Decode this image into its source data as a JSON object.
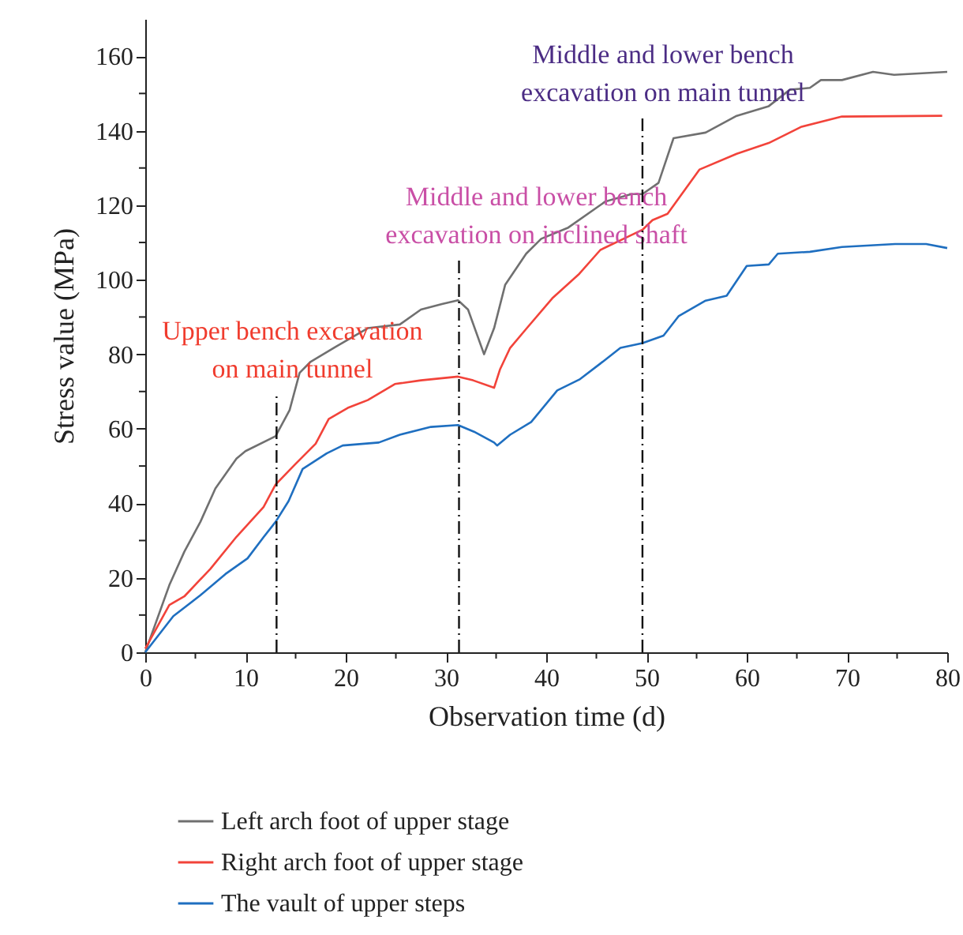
{
  "chart_data": {
    "type": "line",
    "xlabel": "Observation time (d)",
    "ylabel": "Stress value (MPa)",
    "xlim": [
      0,
      80
    ],
    "ylim": [
      0,
      170
    ],
    "xticks": [
      0,
      {
        "value": 5,
        "label": null
      },
      10,
      {
        "value": 15,
        "label": null
      },
      20,
      {
        "value": 25,
        "label": null
      },
      30,
      {
        "value": 35,
        "label": null
      },
      40,
      {
        "value": 45,
        "label": null
      },
      50,
      {
        "value": 55,
        "label": null
      },
      60,
      {
        "value": 65,
        "label": null
      },
      70,
      {
        "value": 75,
        "label": null
      },
      80
    ],
    "yticks": [
      0,
      {
        "value": 10,
        "label": null
      },
      20,
      {
        "value": 30,
        "label": null
      },
      40,
      {
        "value": 50,
        "label": null
      },
      60,
      {
        "value": 70,
        "label": null
      },
      80,
      {
        "value": 90,
        "label": null
      },
      100,
      {
        "value": 110,
        "label": null
      },
      120,
      {
        "value": 130,
        "label": null
      },
      140,
      {
        "value": 150,
        "label": null
      },
      160
    ],
    "grid": false,
    "legend": "bottom",
    "line_style": "solid",
    "series": [
      {
        "name": "Left arch foot of upper stage",
        "color": "#707070",
        "x": [
          0,
          2.4,
          3.9,
          5.5,
          7,
          9.1,
          10,
          13,
          14.4,
          15.4,
          16.5,
          19,
          22.2,
          25.4,
          27.5,
          29.6,
          31.2,
          32.2,
          33.8,
          34.8,
          35.9,
          38,
          39.5,
          42.2,
          45.9,
          48.5,
          49.6,
          51.2,
          52.7,
          55.9,
          59,
          62.2,
          64.3,
          66.3,
          67.4,
          69.5,
          72.6,
          74.7,
          80
        ],
        "values": [
          0,
          18,
          27,
          35,
          44,
          52,
          54,
          58,
          65,
          75,
          78,
          82,
          87,
          88,
          92,
          93.5,
          94.5,
          92,
          80,
          87,
          98.6,
          107,
          111,
          114,
          121,
          123,
          123,
          126,
          138,
          139.5,
          144,
          146.6,
          151,
          151.5,
          153.6,
          153.6,
          155.8,
          155,
          155.8
        ]
      },
      {
        "name": "Right arch foot of upper stage",
        "color": "#f2433a",
        "x": [
          0,
          2.4,
          3.9,
          6.5,
          9.1,
          11.8,
          13,
          15,
          17,
          18.3,
          20.2,
          22.2,
          24.9,
          27.5,
          31.2,
          32.7,
          34.8,
          35.4,
          36.4,
          38,
          40.6,
          43.3,
          45.4,
          48.5,
          49.6,
          50.6,
          52.1,
          55.3,
          59,
          62.2,
          65.4,
          69.5,
          79.5
        ],
        "values": [
          1,
          12.7,
          15,
          22.4,
          31,
          39,
          45,
          50.6,
          56,
          62.6,
          65.6,
          67.7,
          72,
          73,
          74,
          73,
          71,
          76,
          81.7,
          86.8,
          95,
          101.6,
          108,
          112,
          113.4,
          116,
          117.7,
          129.6,
          133.8,
          136.7,
          141,
          143.8,
          144
        ]
      },
      {
        "name": "The vault of upper steps",
        "color": "#1f6fc0",
        "x": [
          0,
          2.8,
          5.5,
          8,
          10.2,
          11.8,
          13,
          14.3,
          15.7,
          18.1,
          19.7,
          23.3,
          25.4,
          28.5,
          31.2,
          32.8,
          34.8,
          35.1,
          36.4,
          38.5,
          41.1,
          43.3,
          45.4,
          47.4,
          49.6,
          51.7,
          53.2,
          55.9,
          58,
          60,
          62.2,
          63.1,
          66.3,
          69.5,
          74.8,
          77.9,
          80
        ],
        "values": [
          0,
          9.7,
          15.3,
          21,
          25.2,
          30.9,
          35,
          40.6,
          49.2,
          53.4,
          55.5,
          56.3,
          58.4,
          60.5,
          61,
          59.2,
          56.3,
          55.5,
          58.4,
          61.8,
          70.3,
          73.2,
          77.5,
          81.7,
          83,
          85,
          90.2,
          94.4,
          95.7,
          103.7,
          104.1,
          107,
          107.5,
          108.8,
          109.6,
          109.6,
          108.5
        ]
      }
    ],
    "ref_lines": [
      {
        "axis": "x",
        "value": 13.1,
        "label": "Upper bench excavation\non main tunnel",
        "color": "#111111",
        "line_style": "dashdot"
      },
      {
        "axis": "x",
        "value": 31.3,
        "label": "Middle and lower bench\nexcavation on inclined shaft",
        "color": "#111111",
        "line_style": "dashdot"
      },
      {
        "axis": "x",
        "value": 49.6,
        "label": "Middle and lower bench\nexcavation on main tunnel",
        "color": "#111111",
        "line_style": "dashdot"
      }
    ]
  }
}
